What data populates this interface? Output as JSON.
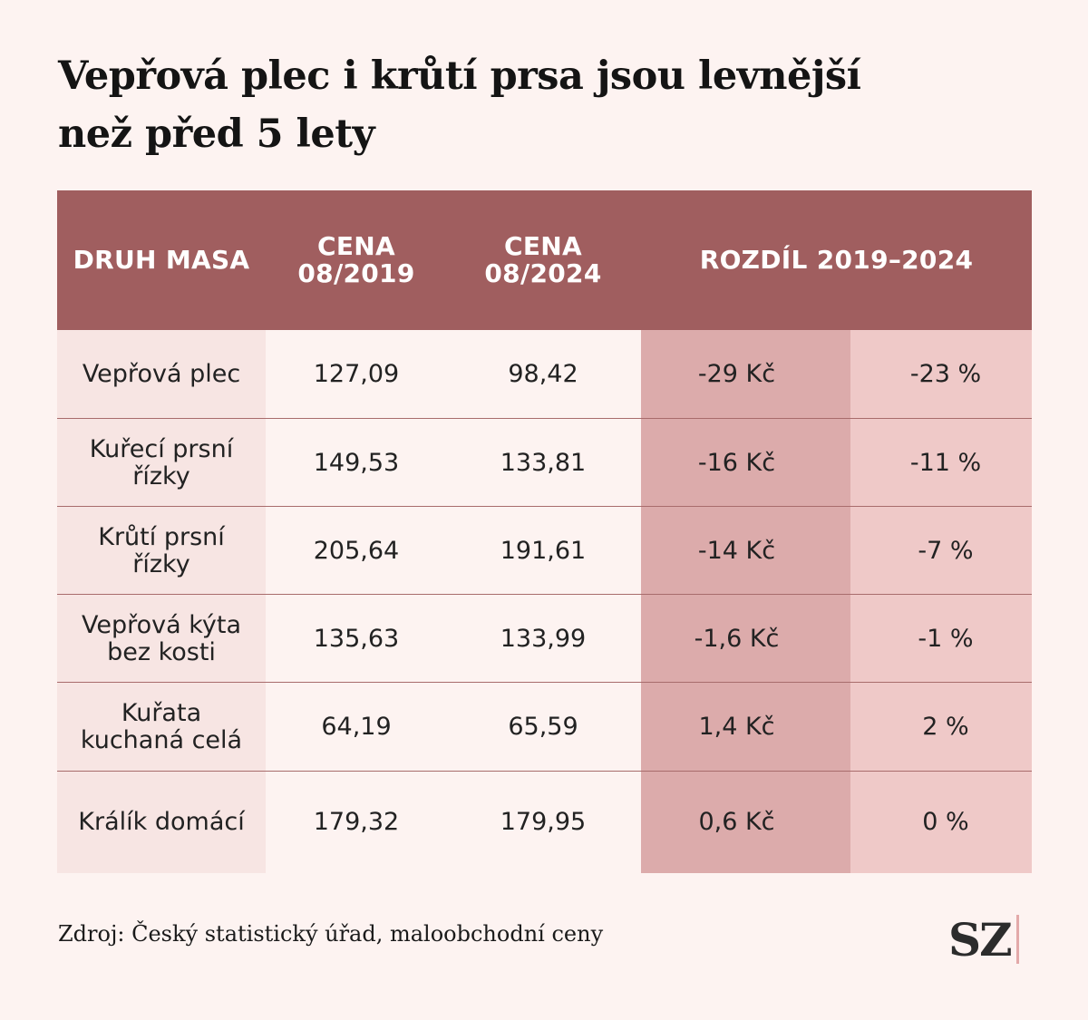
{
  "title": "Vepřová plec i krůtí prsa jsou levnější\nnež před 5 lety",
  "table": {
    "headers": {
      "name": "DRUH MASA",
      "p2019": "CENA\n08/2019",
      "p2024": "CENA\n08/2024",
      "diff": "ROZDÍL 2019–2024"
    },
    "rows": [
      {
        "name": "Vepřová plec",
        "p2019": "127,09",
        "p2024": "98,42",
        "diff": "-29 Kč",
        "pct": "-23 %"
      },
      {
        "name": "Kuřecí prsní\nřízky",
        "p2019": "149,53",
        "p2024": "133,81",
        "diff": "-16 Kč",
        "pct": "-11 %"
      },
      {
        "name": "Krůtí prsní\nřízky",
        "p2019": "205,64",
        "p2024": "191,61",
        "diff": "-14 Kč",
        "pct": "-7 %"
      },
      {
        "name": "Vepřová kýta\nbez kosti",
        "p2019": "135,63",
        "p2024": "133,99",
        "diff": "-1,6 Kč",
        "pct": "-1 %"
      },
      {
        "name": "Kuřata\nkuchaná celá",
        "p2019": "64,19",
        "p2024": "65,59",
        "diff": "1,4 Kč",
        "pct": "2 %"
      },
      {
        "name": "Králík domácí",
        "p2019": "179,32",
        "p2024": "179,95",
        "diff": "0,6 Kč",
        "pct": "0 %"
      }
    ]
  },
  "source": "Zdroj: Český statistický úřad, maloobchodní ceny",
  "logo": "SZ",
  "colors": {
    "background": "#fdf3f1",
    "header": "#a05e5f",
    "name_column": "#f7e5e3",
    "diff_column": "#dcabab",
    "pct_column": "#efc9c8",
    "logo_bar": "#e3a9a9"
  }
}
